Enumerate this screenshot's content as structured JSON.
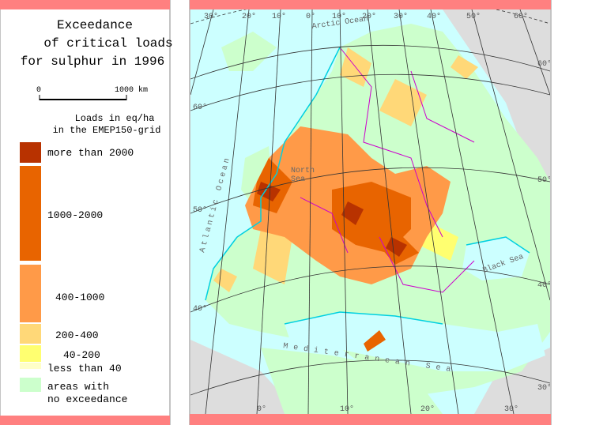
{
  "legend_panel": {
    "title": [
      "Exceedance",
      "of critical loads",
      "for sulphur in 1996"
    ],
    "scale_bar": {
      "start": "0",
      "end": "1000 km"
    },
    "subtitle": [
      "Loads in eq/ha",
      "in the EMEP150-grid"
    ],
    "items": [
      {
        "lines": [
          "more than 2000"
        ],
        "color": "#b83200"
      },
      {
        "lines": [
          "1000-2000"
        ],
        "color": "#e86400"
      },
      {
        "lines": [
          "400-1000"
        ],
        "color": "#ff9a48"
      },
      {
        "lines": [
          "200-400"
        ],
        "color": "#ffd878"
      },
      {
        "lines": [
          "40-200"
        ],
        "color": "#ffff70"
      },
      {
        "lines": [
          "less than 40"
        ],
        "color": "#ffffc8"
      },
      {
        "lines": [
          "areas with",
          "no exceedance"
        ],
        "color": "#ccffcc"
      }
    ]
  },
  "map": {
    "labels": {
      "arctic_ocean": "Arctic Ocean",
      "north_sea": [
        "North",
        "Sea"
      ],
      "atlantic_ocean": "Atlantic Ocean",
      "black_sea": "Black Sea",
      "mediterranean_sea": "Mediterranean Sea"
    },
    "graticule": {
      "top": [
        "30°",
        "20°",
        "10°",
        "0°",
        "10°",
        "20°",
        "30°",
        "40°",
        "50°",
        "60°"
      ],
      "left": [
        "60°",
        "50°",
        "40°"
      ],
      "right": [
        "60°",
        "50°",
        "40°",
        "30°"
      ],
      "bottom": [
        "0°",
        "10°",
        "20°",
        "30°"
      ]
    }
  }
}
